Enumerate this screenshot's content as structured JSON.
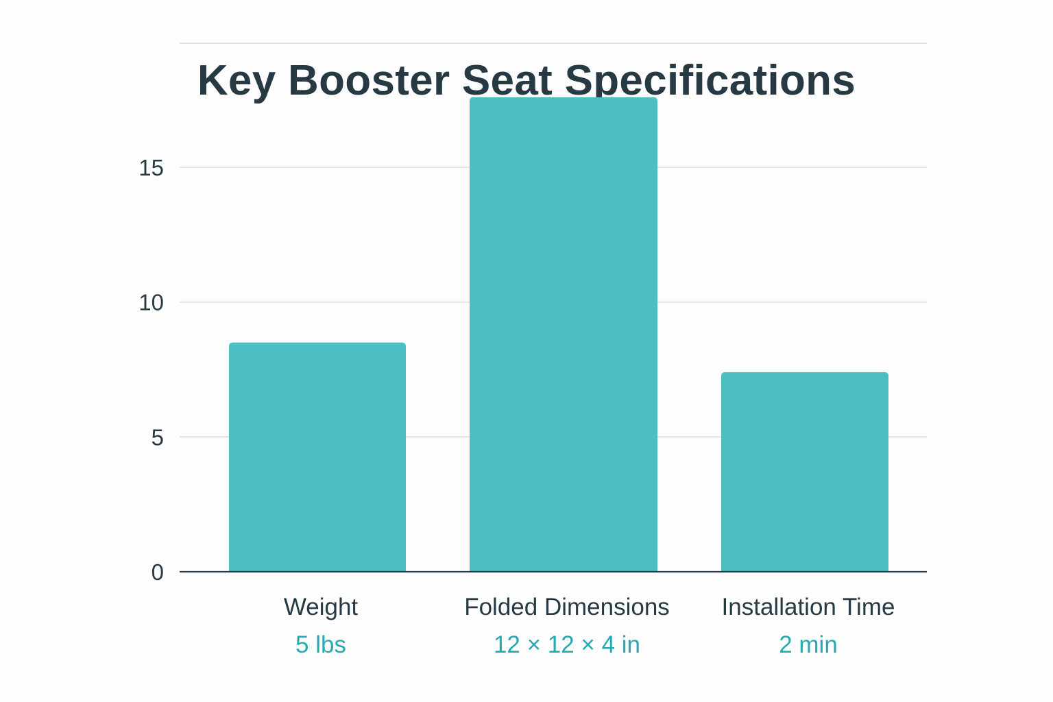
{
  "chart_data": {
    "type": "bar",
    "title": "Key Booster Seat Specifications",
    "categories": [
      "Weight",
      "Folded Dimensions",
      "Installation Time"
    ],
    "values": [
      8.5,
      17.6,
      7.4
    ],
    "value_labels": [
      "5 lbs",
      "12 × 12 × 4 in",
      "2 min"
    ],
    "y_ticks": [
      {
        "value": 0,
        "label": "0"
      },
      {
        "value": 5,
        "label": "5"
      },
      {
        "value": 10,
        "label": "10"
      },
      {
        "value": 15,
        "label": "15"
      }
    ],
    "y_gridlines": [
      5,
      10,
      15,
      19.6
    ],
    "ylim": [
      0,
      19.6
    ],
    "grid": true,
    "xlabel": "",
    "ylabel": "",
    "colors": {
      "bar": "#4bbfc3",
      "value_label": "#26aab1",
      "text": "#273a44",
      "grid": "#dcdcdc",
      "axis": "#273a44"
    }
  }
}
